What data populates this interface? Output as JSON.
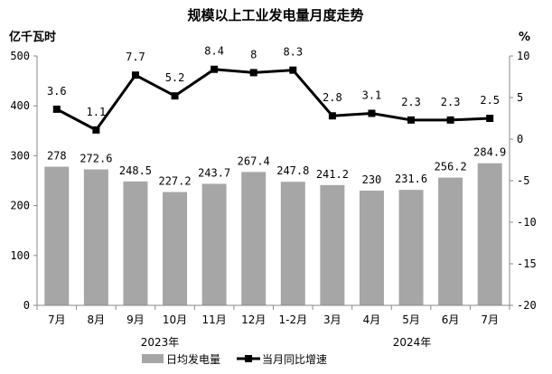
{
  "chart_data": {
    "type": "bar+line",
    "title": "规模以上工业发电量月度走势",
    "ylabel_left": "亿千瓦时",
    "ylabel_right": "%",
    "ylim_left": [
      0,
      500
    ],
    "ylim_right": [
      -20,
      10
    ],
    "yticks_left": [
      0,
      100,
      200,
      300,
      400,
      500
    ],
    "yticks_right": [
      -20,
      -15,
      -10,
      -5,
      0,
      5,
      10
    ],
    "categories": [
      "7月",
      "8月",
      "9月",
      "10月",
      "11月",
      "12月",
      "1-2月",
      "3月",
      "4月",
      "5月",
      "6月",
      "7月"
    ],
    "year_labels": [
      "2023年",
      "2024年"
    ],
    "legend_position": "bottom",
    "series": [
      {
        "name": "日均发电量",
        "type": "bar",
        "axis": "left",
        "color": "#a6a6a6",
        "values": [
          278,
          272.6,
          248.5,
          227.2,
          243.7,
          267.4,
          247.8,
          241.2,
          230,
          231.6,
          256.2,
          284.9
        ]
      },
      {
        "name": "当月同比增速",
        "type": "line",
        "axis": "right",
        "color": "#000000",
        "values": [
          3.6,
          1.1,
          7.7,
          5.2,
          8.4,
          8,
          8.3,
          2.8,
          3.1,
          2.3,
          2.3,
          2.5
        ]
      }
    ]
  }
}
